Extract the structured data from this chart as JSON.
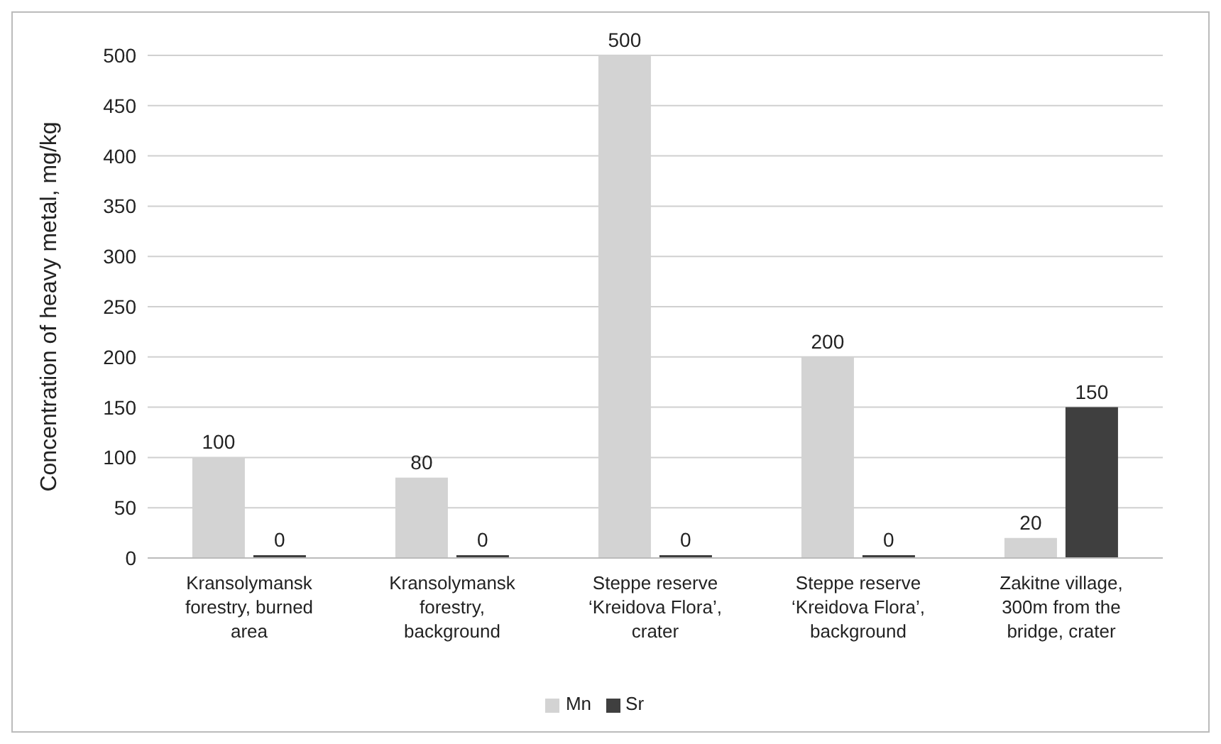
{
  "chart_data": {
    "type": "bar",
    "ylabel": "Concentration of heavy metal, mg/kg",
    "categories": [
      "Kransolymansk forestry, burned area",
      "Kransolymansk forestry, background",
      "Steppe reserve ‘Kreidova Flora’, crater",
      "Steppe reserve ‘Kreidova Flora’, background",
      "Zakitne village, 300m from the bridge, crater"
    ],
    "series": [
      {
        "name": "Mn",
        "color": "#d3d3d3",
        "values": [
          100,
          80,
          500,
          200,
          20
        ]
      },
      {
        "name": "Sr",
        "color": "#3f3f3f",
        "values": [
          0,
          0,
          0,
          0,
          150
        ]
      }
    ],
    "ylim": [
      0,
      500
    ],
    "yticks": [
      0,
      50,
      100,
      150,
      200,
      250,
      300,
      350,
      400,
      450,
      500
    ],
    "grid": "y",
    "legend": "bottom",
    "data_labels": true
  }
}
